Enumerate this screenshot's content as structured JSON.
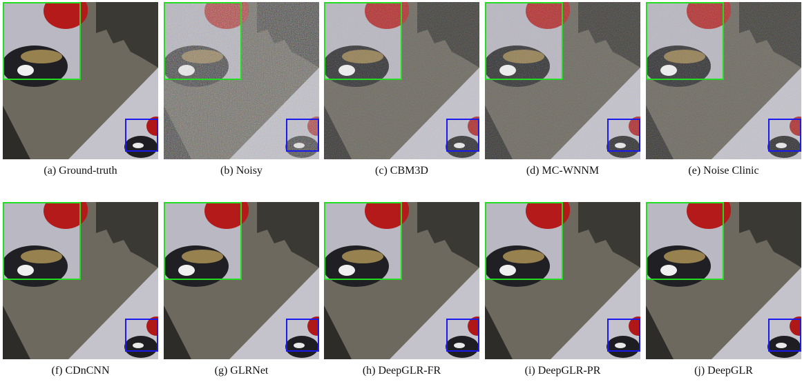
{
  "figure": {
    "captions": [
      "(a) Ground-truth",
      "(b) Noisy",
      "(c) CBM3D",
      "(d) MC-WNNM",
      "(e) Noise Clinic",
      "(f) CDnCNN",
      "(g) GLRNet",
      "(h) DeepGLR-FR",
      "(i) DeepGLR-PR",
      "(j) DeepGLR"
    ]
  }
}
